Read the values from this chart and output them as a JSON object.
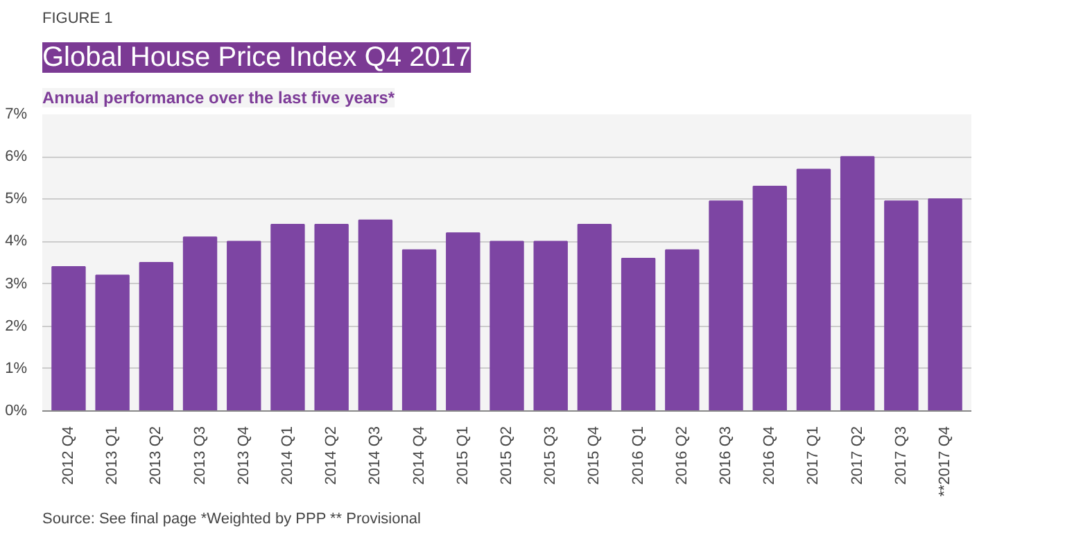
{
  "chart_data": {
    "type": "bar",
    "title": "Global House Price Index Q4 2017",
    "subtitle": "Annual performance over the last five years*",
    "annotations": [
      "FIGURE 1",
      "Source: See final page *Weighted by PPP ** Provisional"
    ],
    "categories": [
      "2012 Q4",
      "2013 Q1",
      "2013 Q2",
      "2013 Q3",
      "2013 Q4",
      "2014 Q1",
      "2014 Q2",
      "2014 Q3",
      "2014 Q4",
      "2015 Q1",
      "2015 Q2",
      "2015 Q3",
      "2015 Q4",
      "2016 Q1",
      "2016 Q2",
      "2016 Q3",
      "2016 Q4",
      "2017 Q1",
      "2017 Q2",
      "2017 Q3",
      "**2017 Q4"
    ],
    "values": [
      3.4,
      3.2,
      3.5,
      4.1,
      4.0,
      4.4,
      4.4,
      4.5,
      3.8,
      4.2,
      4.0,
      4.0,
      4.4,
      3.6,
      3.8,
      4.95,
      5.3,
      5.7,
      6.0,
      4.95,
      5.0
    ],
    "color": "#7d45a3",
    "ylim": [
      0,
      7
    ],
    "yticks": [
      {
        "value": 0,
        "label": "0%"
      },
      {
        "value": 1,
        "label": "1%"
      },
      {
        "value": 2,
        "label": "2%"
      },
      {
        "value": 3,
        "label": "3%"
      },
      {
        "value": 4,
        "label": "4%"
      },
      {
        "value": 5,
        "label": "5%"
      },
      {
        "value": 6,
        "label": "6%"
      },
      {
        "value": 7,
        "label": "7%"
      }
    ],
    "grid": "y"
  }
}
